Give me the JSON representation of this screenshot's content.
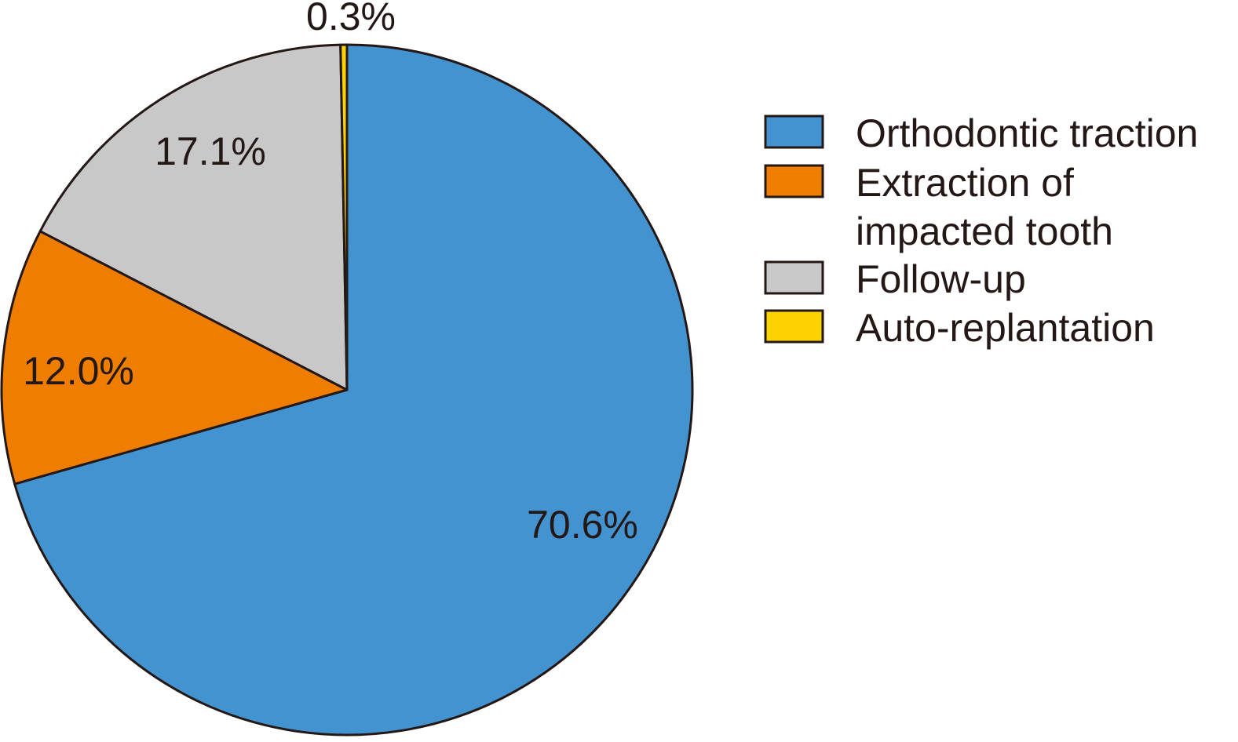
{
  "chart_data": {
    "type": "pie",
    "title": "",
    "start_angle": "12 o'clock, clockwise",
    "legend_position": "right",
    "slices": [
      {
        "name": "Orthodontic traction",
        "value": 70.6,
        "label": "70.6%",
        "color": "#4393D0"
      },
      {
        "name": "Extraction of impacted tooth",
        "value": 12.0,
        "label": "12.0%",
        "color": "#EE7D00"
      },
      {
        "name": "Follow-up",
        "value": 17.1,
        "label": "17.1%",
        "color": "#C8C8C8"
      },
      {
        "name": "Auto-replantation",
        "value": 0.3,
        "label": "0.3%",
        "color": "#FCD200"
      }
    ],
    "legend": [
      {
        "lines": [
          "Orthodontic traction"
        ],
        "color": "#4393D0"
      },
      {
        "lines": [
          "Extraction of",
          "impacted tooth"
        ],
        "color": "#EE7D00"
      },
      {
        "lines": [
          "Follow-up"
        ],
        "color": "#C8C8C8"
      },
      {
        "lines": [
          "Auto-replantation"
        ],
        "color": "#FCD200"
      }
    ]
  }
}
